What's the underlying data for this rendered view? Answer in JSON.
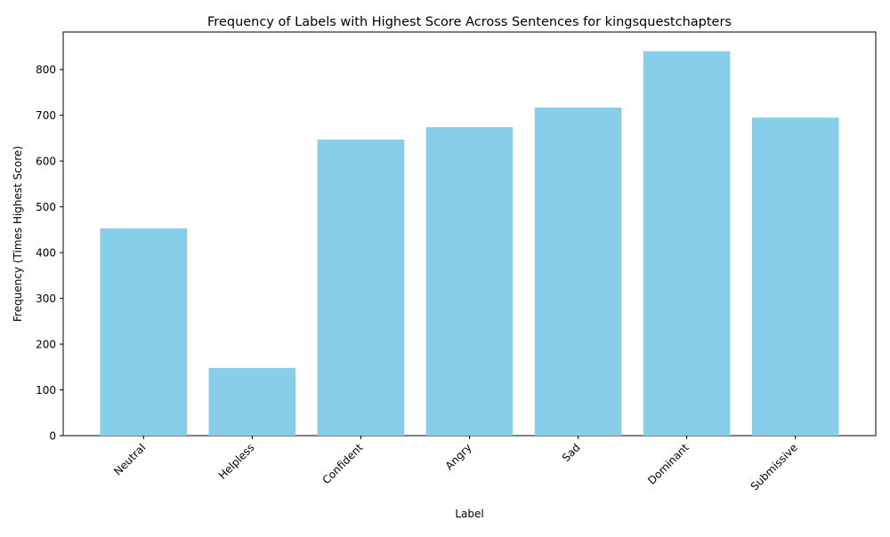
{
  "chart_data": {
    "type": "bar",
    "title": "Frequency of Labels with Highest Score Across Sentences for kingsquestchapters",
    "xlabel": "Label",
    "ylabel": "Frequency (Times Highest Score)",
    "categories": [
      "Neutral",
      "Helpless",
      "Confident",
      "Angry",
      "Sad",
      "Dominant",
      "Submissive"
    ],
    "values": [
      453,
      148,
      647,
      674,
      717,
      840,
      695
    ],
    "ylim": [
      0,
      882
    ],
    "yticks": [
      "0",
      "100",
      "200",
      "300",
      "400",
      "500",
      "600",
      "700",
      "800"
    ],
    "bar_color": "#87CEEB",
    "grid": false,
    "legend": "none"
  }
}
